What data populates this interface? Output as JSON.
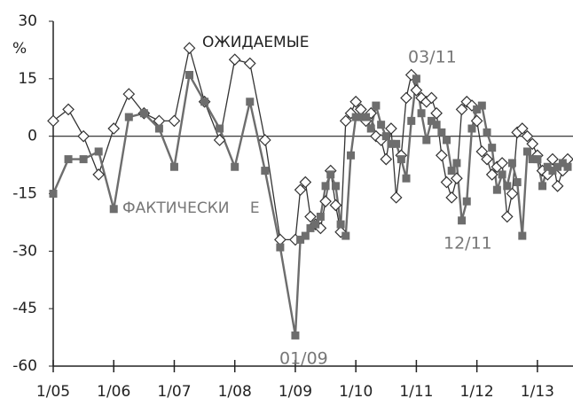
{
  "chart_data": {
    "type": "line",
    "x": [
      2005,
      2005.25,
      2005.5,
      2005.75,
      2006,
      2006.25,
      2006.5,
      2006.75,
      2007,
      2007.25,
      2007.5,
      2007.75,
      2008,
      2008.25,
      2008.5,
      2008.75,
      2009,
      2009.083,
      2009.167,
      2009.25,
      2009.333,
      2009.417,
      2009.5,
      2009.583,
      2009.667,
      2009.75,
      2009.833,
      2009.917,
      2010,
      2010.083,
      2010.167,
      2010.25,
      2010.333,
      2010.417,
      2010.5,
      2010.583,
      2010.667,
      2010.75,
      2010.833,
      2010.917,
      2011,
      2011.083,
      2011.167,
      2011.25,
      2011.333,
      2011.417,
      2011.5,
      2011.583,
      2011.667,
      2011.75,
      2011.833,
      2011.917,
      2012,
      2012.083,
      2012.167,
      2012.25,
      2012.333,
      2012.417,
      2012.5,
      2012.583,
      2012.667,
      2012.75,
      2012.833,
      2012.917,
      2013,
      2013.083,
      2013.167,
      2013.25,
      2013.333,
      2013.417,
      2013.5
    ],
    "series": [
      {
        "name": "ОЖИДАЕМЫЕ",
        "color": "#333333",
        "marker": "diamond",
        "values": [
          4,
          7,
          0,
          -10,
          2,
          11,
          6,
          4,
          4,
          23,
          9,
          -1,
          20,
          19,
          -1,
          -27,
          -27,
          -14,
          -12,
          -21,
          -23,
          -24,
          -17,
          -9,
          -18,
          -25,
          4,
          6,
          9,
          7,
          4,
          6,
          0,
          -1,
          -6,
          2,
          -16,
          -5,
          10,
          16,
          12,
          10,
          9,
          10,
          6,
          -5,
          -12,
          -16,
          -11,
          7,
          9,
          8,
          4,
          -4,
          -6,
          -10,
          -8,
          -7,
          -21,
          -15,
          1,
          2,
          0,
          -2,
          -5,
          -9,
          -10,
          -6,
          -13,
          -9,
          -6
        ]
      },
      {
        "name": "ФАКТИЧЕСКИ Е",
        "color": "#6d6d6d",
        "marker": "square",
        "values": [
          -15,
          -6,
          -6,
          -4,
          -19,
          5,
          6,
          2,
          -8,
          16,
          9,
          2,
          -8,
          9,
          -9,
          -29,
          -52,
          -27,
          -26,
          -24,
          -23,
          -21,
          -13,
          -10,
          -13,
          -23,
          -26,
          -5,
          5,
          5,
          5,
          2,
          8,
          3,
          0,
          -2,
          -2,
          -6,
          -11,
          4,
          15,
          6,
          -1,
          4,
          3,
          1,
          -1,
          -9,
          -7,
          -22,
          -17,
          2,
          7,
          8,
          1,
          -3,
          -14,
          -10,
          -13,
          -7,
          -12,
          -26,
          -4,
          -6,
          -6,
          -13,
          -8,
          -9,
          -8,
          -7,
          -8
        ]
      }
    ],
    "y_label": "%",
    "annotations": [
      "03/11",
      "12/11",
      "01/09"
    ],
    "xlim": [
      2005,
      2013.5
    ],
    "xticks": [
      {
        "value": 2005,
        "label": "1/05"
      },
      {
        "value": 2006,
        "label": "1/06"
      },
      {
        "value": 2007,
        "label": "1/07"
      },
      {
        "value": 2008,
        "label": "1/08"
      },
      {
        "value": 2009,
        "label": "1/09"
      },
      {
        "value": 2010,
        "label": "1/10"
      },
      {
        "value": 2011,
        "label": "1/11"
      },
      {
        "value": 2012,
        "label": "1/12"
      },
      {
        "value": 2013,
        "label": "1/13"
      }
    ],
    "ylim": [
      -60,
      30
    ],
    "yticks": [
      -60,
      -45,
      -30,
      -15,
      0,
      15,
      30
    ],
    "grid": false
  }
}
